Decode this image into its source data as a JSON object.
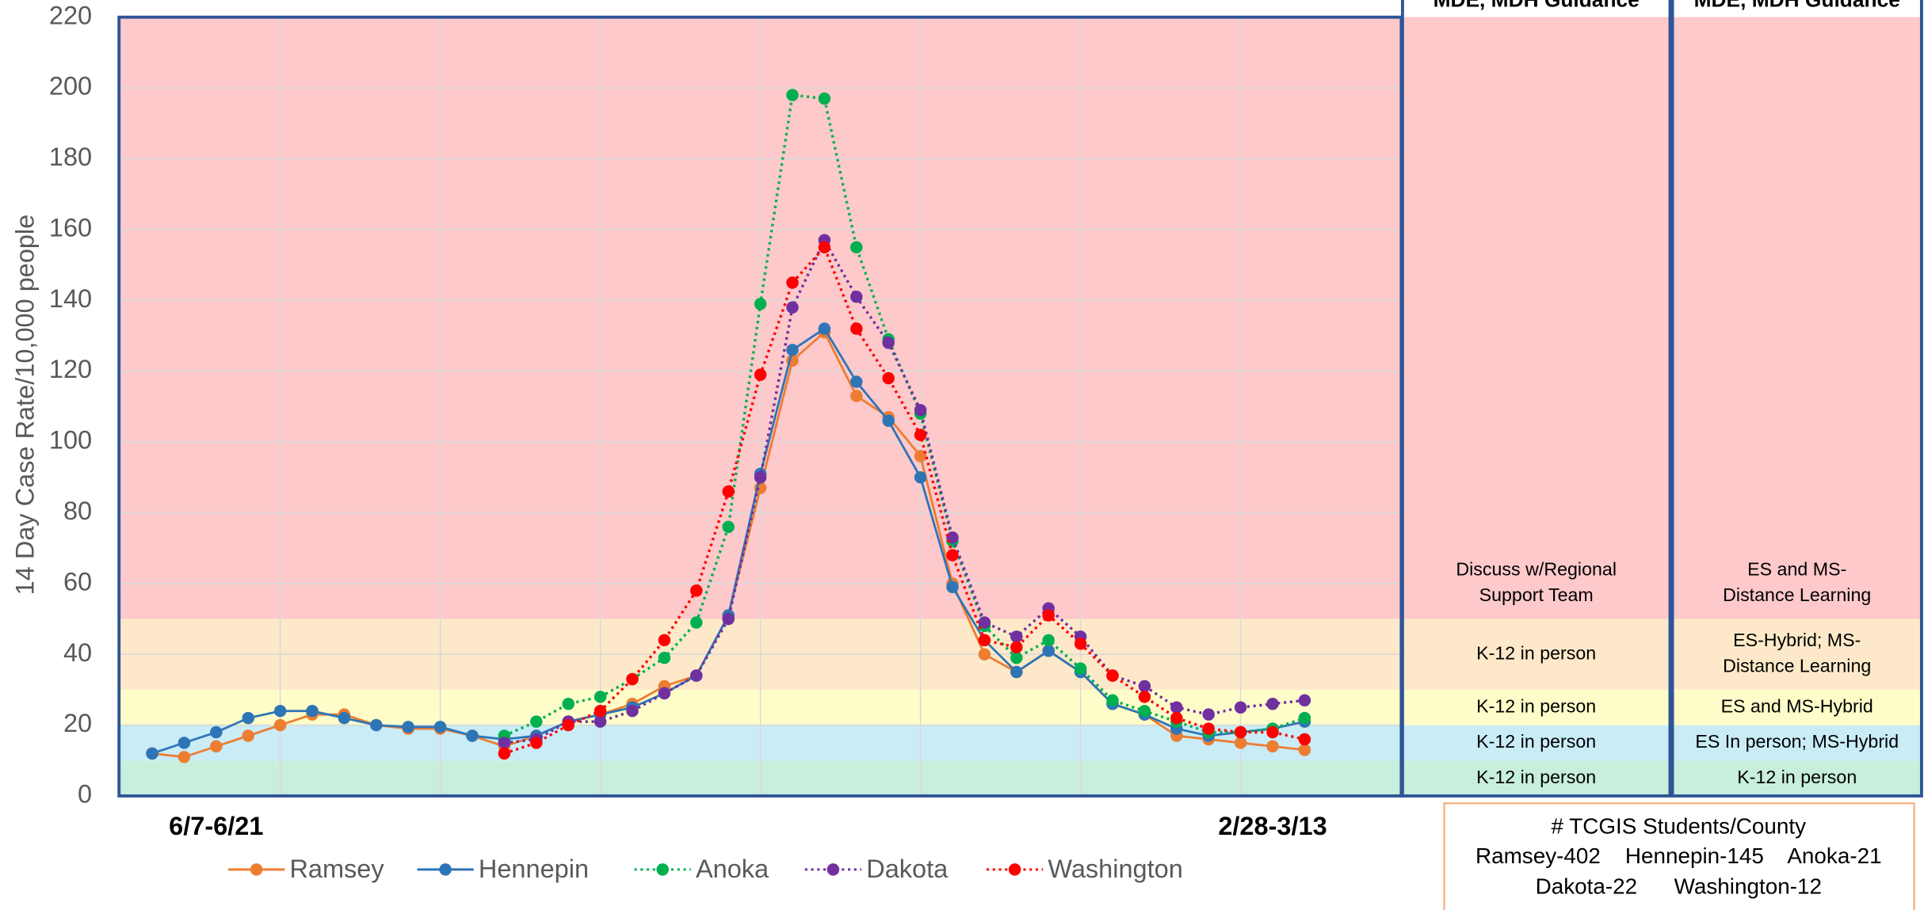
{
  "chart_data": {
    "type": "line",
    "y_label": "14 Day Case Rate/10,000 people",
    "categories": [
      null,
      null,
      "6/7-6/21",
      null,
      null,
      null,
      null,
      null,
      null,
      null,
      null,
      null,
      null,
      null,
      null,
      null,
      null,
      null,
      null,
      null,
      null,
      null,
      null,
      null,
      null,
      null,
      null,
      null,
      null,
      null,
      null,
      null,
      null,
      null,
      null,
      "2/28-3/13",
      null
    ],
    "ylim": [
      0,
      220
    ],
    "yticks": [
      0,
      20,
      40,
      60,
      80,
      100,
      120,
      140,
      160,
      180,
      200,
      220
    ],
    "grid": true,
    "legend": "bottom",
    "series": [
      {
        "name": "Ramsey",
        "color": "#ed7d31",
        "dash": "solid",
        "values": [
          12,
          11,
          14,
          17,
          20,
          23,
          23,
          20,
          19,
          19,
          17,
          14,
          17,
          21,
          23,
          26,
          31,
          34,
          51,
          87,
          123,
          131,
          113,
          107,
          96,
          60,
          40,
          35,
          41,
          35,
          26,
          23,
          17,
          16,
          15,
          14,
          13
        ]
      },
      {
        "name": "Hennepin",
        "color": "#2e75b6",
        "dash": "solid",
        "values": [
          12,
          15,
          18,
          22,
          24,
          24,
          22,
          20,
          19.5,
          19.5,
          17,
          16,
          17,
          21,
          23,
          25,
          29,
          34,
          51,
          91,
          126,
          132,
          117,
          106,
          90,
          59,
          44,
          35,
          41,
          35,
          26,
          23,
          19,
          17,
          18,
          19,
          21
        ]
      },
      {
        "name": "Anoka",
        "color": "#00b050",
        "dash": "dotted",
        "values": [
          null,
          null,
          null,
          null,
          null,
          null,
          null,
          null,
          null,
          null,
          null,
          17,
          21,
          26,
          28,
          33,
          39,
          49,
          76,
          139,
          198,
          197,
          155,
          129,
          108,
          72,
          48,
          39,
          44,
          36,
          27,
          24,
          21,
          18,
          18,
          19,
          22
        ]
      },
      {
        "name": "Dakota",
        "color": "#7030a0",
        "dash": "dotted",
        "values": [
          null,
          null,
          null,
          null,
          null,
          null,
          null,
          null,
          null,
          null,
          null,
          15,
          16,
          21,
          21,
          24,
          29,
          34,
          50,
          90,
          138,
          157,
          141,
          128,
          109,
          73,
          49,
          45,
          53,
          45,
          34,
          31,
          25,
          23,
          25,
          26,
          27
        ]
      },
      {
        "name": "Washington",
        "color": "#ff0000",
        "dash": "dotted",
        "values": [
          null,
          null,
          null,
          null,
          null,
          null,
          null,
          null,
          null,
          null,
          null,
          12,
          15,
          20,
          24,
          33,
          44,
          58,
          86,
          119,
          145,
          155,
          132,
          118,
          102,
          68,
          44,
          42,
          51,
          43,
          34,
          28,
          22,
          19,
          18,
          18,
          16
        ]
      }
    ],
    "bands": [
      {
        "from": 0,
        "to": 10,
        "color": "#c8eedc"
      },
      {
        "from": 10,
        "to": 20,
        "color": "#c9ecf7"
      },
      {
        "from": 20,
        "to": 30,
        "color": "#fefdc9"
      },
      {
        "from": 30,
        "to": 50,
        "color": "#fde9c9"
      },
      {
        "from": 50,
        "to": 220,
        "color": "#fdc9ca"
      }
    ],
    "panels": [
      {
        "title": "MDE, MDH Guidance",
        "rows": [
          [
            "K-12 in person"
          ],
          [
            "K-12 in person"
          ],
          [
            "K-12 in person"
          ],
          [
            "K-12 in person"
          ],
          [
            "Discuss w/Regional",
            "Support Team"
          ]
        ]
      },
      {
        "title": "MDE, MDH Guidance",
        "rows": [
          [
            "K-12 in person"
          ],
          [
            "ES In person; MS-Hybrid"
          ],
          [
            "ES and MS-Hybrid"
          ],
          [
            "ES-Hybrid; MS-",
            "Distance Learning"
          ],
          [
            "ES and MS-",
            "Distance Learning"
          ]
        ]
      }
    ],
    "info_box": {
      "title": "# TCGIS Students/County",
      "lines": [
        "Ramsey-402    Hennepin-145    Anoka-21",
        "Dakota-22      Washington-12"
      ]
    }
  }
}
